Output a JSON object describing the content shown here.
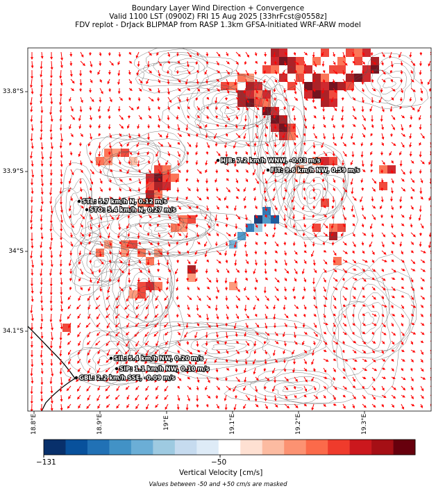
{
  "title": {
    "line1": "Boundary Layer Wind Direction + Convergence",
    "line2": "Valid 1100 LST (0900Z) FRI 15 Aug 2025 [33hrFcst@0558z]",
    "line3": "FDV replot - DrJack BLIPMAP from RASP 1.3km GFSA-Initiated WRF-ARW model"
  },
  "axes": {
    "y_ticks": [
      "33.8°S",
      "33.9°S",
      "34°S",
      "34.1°S"
    ],
    "x_ticks": [
      "18.8°E",
      "18.9°E",
      "19°E",
      "19.1°E",
      "19.2°E",
      "19.3°E"
    ]
  },
  "stations": [
    {
      "code": "HJB",
      "label": "HJB: 7.2 km/h WNW, -0.03 m/s"
    },
    {
      "code": "FIT",
      "label": "FIT: 9.6 km/h NW, 0.59 m/s"
    },
    {
      "code": "STL",
      "label": "STL: 5.7 km/h N, 0.12 m/s"
    },
    {
      "code": "STO",
      "label": "STO: 5.4 km/h N, 0.27 m/s"
    },
    {
      "code": "SIL",
      "label": "SIL: 5.4 km/h NW, 0.20 m/s"
    },
    {
      "code": "SIP",
      "label": "SIP: 1.1 km/h NW, 0.10 m/s"
    },
    {
      "code": "GBL",
      "label": "GBL: 2.2 km/h SSE, -0.09 m/s"
    }
  ],
  "colorbar": {
    "label": "Vertical Velocity [cm/s]",
    "tick_min": "−131",
    "tick_mid": "−50",
    "colors": [
      "#08306b",
      "#08519c",
      "#2171b5",
      "#4292c6",
      "#6baed6",
      "#9ecae1",
      "#c6dbef",
      "#deebf7",
      "#ffffff",
      "#fee0d2",
      "#fcbba1",
      "#fc9272",
      "#fb6a4a",
      "#ef3b2c",
      "#cb181d",
      "#a50f15",
      "#67000d"
    ]
  },
  "footnote": "Values between -50 and +50 cm/s are masked"
}
